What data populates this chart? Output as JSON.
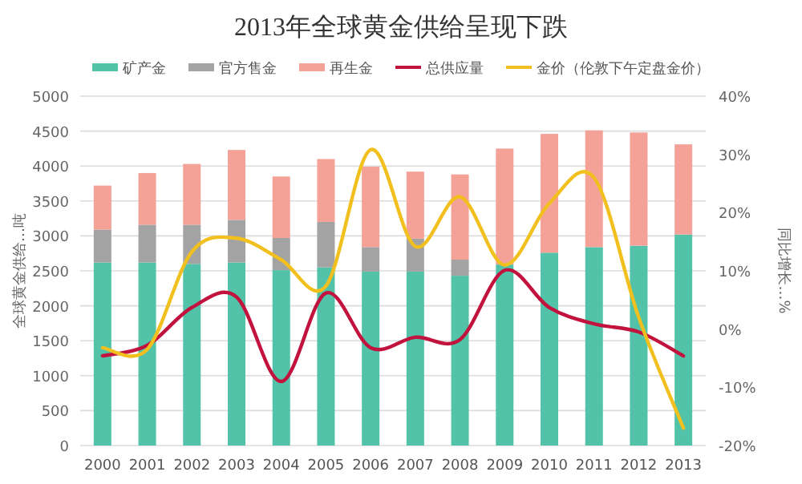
{
  "chart_data": {
    "type": "bar",
    "stacked": true,
    "title": "2013年全球黄金供给呈现下跌",
    "categories": [
      "2000",
      "2001",
      "2002",
      "2003",
      "2004",
      "2005",
      "2006",
      "2007",
      "2008",
      "2009",
      "2010",
      "2011",
      "2012",
      "2013"
    ],
    "series": [
      {
        "name": "矿产金",
        "color": "#52c3a8",
        "values": [
          2620,
          2620,
          2600,
          2620,
          2510,
          2550,
          2490,
          2490,
          2430,
          2590,
          2760,
          2840,
          2860,
          3020
        ]
      },
      {
        "name": "官方售金",
        "color": "#a3a3a3",
        "values": [
          470,
          540,
          560,
          610,
          460,
          650,
          350,
          470,
          230,
          null,
          0,
          0,
          0,
          0
        ]
      },
      {
        "name": "再生金",
        "color": "#f4a198",
        "values": [
          630,
          740,
          870,
          1000,
          880,
          900,
          1150,
          960,
          1220,
          1660,
          1700,
          1670,
          1620,
          1290
        ]
      },
      {
        "name": "总供应量",
        "type": "line",
        "axis": "y2",
        "color": "#c2123e",
        "values": [
          -4.6,
          -2.8,
          3.7,
          5.5,
          -9.0,
          6.2,
          -3.2,
          -1.4,
          -1.8,
          10.1,
          3.7,
          0.9,
          -0.5,
          -4.6
        ]
      },
      {
        "name": "金价（伦敦下午定盘金价）",
        "type": "line",
        "axis": "y2",
        "color": "#f2c01e",
        "values": [
          -3.2,
          -3.5,
          13.3,
          15.6,
          11.9,
          7.4,
          30.8,
          14.2,
          22.7,
          11.0,
          21.6,
          26.0,
          2.0,
          -17.0
        ]
      }
    ],
    "ylabel": "全球黄金供给…吨",
    "y2label": "同比增长…%",
    "ylim": [
      0,
      5000
    ],
    "yticks": [
      0,
      500,
      1000,
      1500,
      2000,
      2500,
      3000,
      3500,
      4000,
      4500,
      5000
    ],
    "y2lim": [
      -20,
      40
    ],
    "y2ticks": [
      {
        "value": -20,
        "label": "-20%"
      },
      {
        "value": -10,
        "label": "-10%"
      },
      {
        "value": 0,
        "label": "0%"
      },
      {
        "value": 10,
        "label": "10%"
      },
      {
        "value": 20,
        "label": "20%"
      },
      {
        "value": 30,
        "label": "30%"
      },
      {
        "value": 40,
        "label": "40%"
      }
    ],
    "grid": "y",
    "legend": "top"
  }
}
